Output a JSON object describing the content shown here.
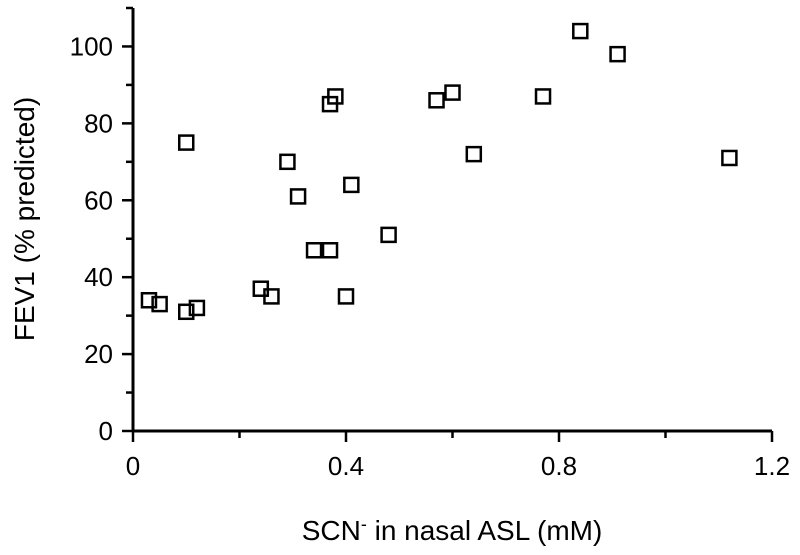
{
  "chart_data": {
    "type": "scatter",
    "title": "",
    "xlabel": {
      "prefix": "SCN",
      "superscript": "-",
      "suffix": " in nasal ASL (mM)"
    },
    "ylabel": "FEV1 (% predicted)",
    "xlim": [
      0,
      1.2
    ],
    "ylim": [
      0,
      110
    ],
    "xticks": [
      0,
      0.4,
      0.8,
      1.2
    ],
    "xtick_labels": [
      "0",
      "0.4",
      "0.8",
      "1.2"
    ],
    "xminor_ticks": [
      0.2,
      0.6,
      1.0
    ],
    "yticks": [
      0,
      20,
      40,
      60,
      80,
      100
    ],
    "ytick_labels": [
      "0",
      "20",
      "40",
      "60",
      "80",
      "100"
    ],
    "grid": false,
    "marker": "open-square",
    "series": [
      {
        "points": [
          [
            0.03,
            34
          ],
          [
            0.05,
            33
          ],
          [
            0.1,
            31
          ],
          [
            0.12,
            32
          ],
          [
            0.1,
            75
          ],
          [
            0.24,
            37
          ],
          [
            0.26,
            35
          ],
          [
            0.29,
            70
          ],
          [
            0.31,
            61
          ],
          [
            0.34,
            47
          ],
          [
            0.37,
            47
          ],
          [
            0.37,
            85
          ],
          [
            0.38,
            87
          ],
          [
            0.4,
            35
          ],
          [
            0.41,
            64
          ],
          [
            0.48,
            51
          ],
          [
            0.57,
            86
          ],
          [
            0.6,
            88
          ],
          [
            0.64,
            72
          ],
          [
            0.77,
            87
          ],
          [
            0.84,
            104
          ],
          [
            0.91,
            98
          ],
          [
            1.12,
            71
          ]
        ]
      }
    ]
  }
}
